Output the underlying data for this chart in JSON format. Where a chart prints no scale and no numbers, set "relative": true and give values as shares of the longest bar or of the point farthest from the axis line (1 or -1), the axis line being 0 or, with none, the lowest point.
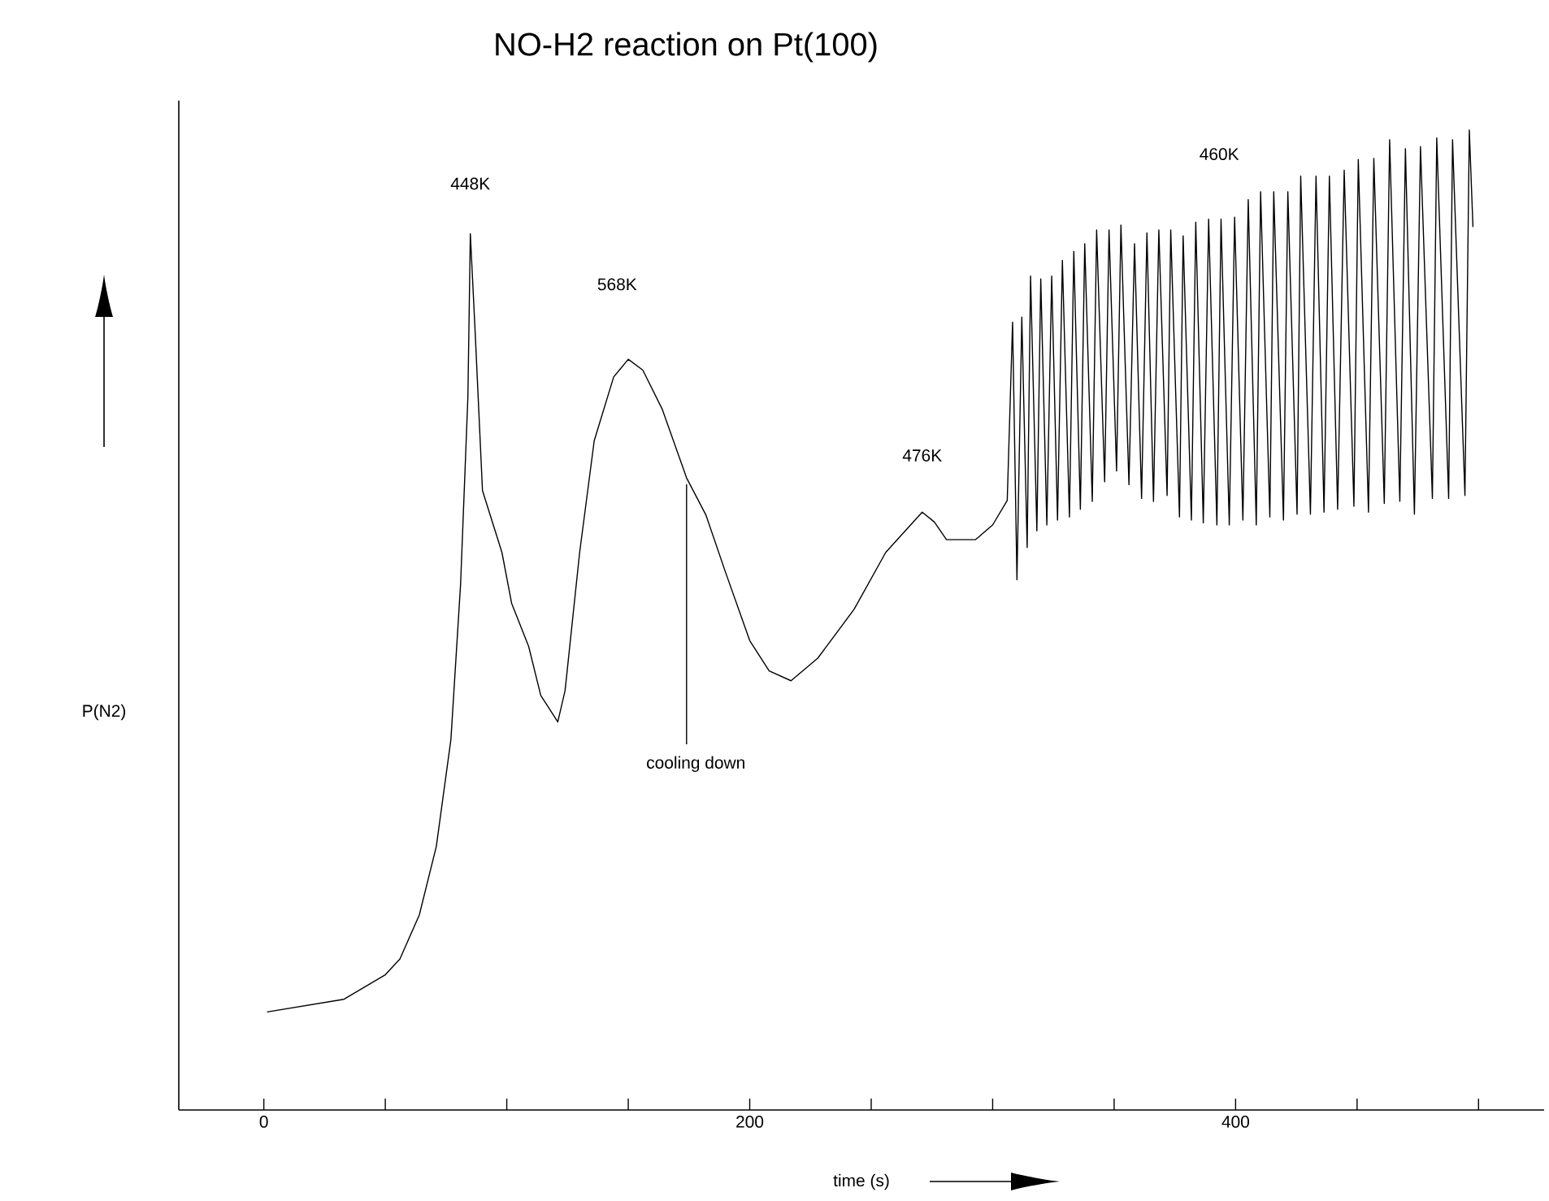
{
  "chart_data": {
    "type": "line",
    "title": "NO-H2 reaction on Pt(100)",
    "xlabel": "time (s)",
    "ylabel": "P(N2)",
    "relative": true,
    "xlim": [
      -35,
      527
    ],
    "xticks": [
      0,
      {
        "value": 50,
        "label": null
      },
      {
        "value": 100,
        "label": null
      },
      {
        "value": 150,
        "label": null
      },
      200,
      {
        "value": 250,
        "label": null
      },
      {
        "value": 300,
        "label": null
      },
      {
        "value": 350,
        "label": null
      },
      400,
      {
        "value": 450,
        "label": null
      },
      {
        "value": 500,
        "label": null
      }
    ],
    "annotations": [
      {
        "text": "448K",
        "x": 85,
        "y": 0.894
      },
      "568K",
      {
        "text": "476K",
        "x": 271,
        "y": 0.61
      },
      "460K",
      {
        "text": "cooling down",
        "x": 174,
        "y": 0.645
      }
    ],
    "series": [
      {
        "color": "#000000",
        "x": [
          1.3,
          33,
          50,
          56,
          64,
          71,
          77,
          81,
          84,
          85,
          87,
          90,
          98,
          102,
          109,
          114,
          121,
          124,
          130,
          136,
          144,
          150,
          156,
          164,
          174,
          182,
          190,
          200,
          208,
          217,
          228,
          243,
          256,
          271,
          276,
          281,
          293,
          300,
          306,
          308.2,
          310.0,
          312.0,
          314.2,
          315.6,
          318.2,
          319.8,
          322.3,
          324.3,
          326.7,
          328.7,
          331.6,
          333.4,
          336.1,
          337.9,
          341.0,
          342.8,
          346.1,
          347.9,
          351.0,
          352.8,
          356.1,
          358.4,
          361.3,
          363.5,
          366.2,
          368.4,
          371.8,
          373.3,
          376.9,
          378.4,
          381.8,
          383.6,
          386.7,
          388.9,
          392.3,
          394.0,
          397.4,
          399.6,
          403.0,
          405.2,
          408.5,
          410.3,
          414.1,
          415.7,
          419.7,
          421.5,
          425.3,
          426.8,
          430.8,
          433.1,
          436.4,
          438.6,
          442.0,
          444.7,
          448.7,
          450.5,
          454.7,
          456.9,
          461.2,
          463.4,
          467.6,
          469.9,
          473.6,
          476.1,
          481.0,
          482.8,
          487.7,
          489.3,
          494.4,
          496.2,
          497.7
        ],
        "values": [
          0.1,
          0.113,
          0.138,
          0.154,
          0.199,
          0.269,
          0.378,
          0.537,
          0.728,
          0.894,
          0.793,
          0.632,
          0.569,
          0.517,
          0.473,
          0.423,
          0.396,
          0.428,
          0.569,
          0.683,
          0.748,
          0.766,
          0.755,
          0.715,
          0.645,
          0.607,
          0.549,
          0.479,
          0.448,
          0.438,
          0.461,
          0.511,
          0.569,
          0.61,
          0.6,
          0.582,
          0.582,
          0.597,
          0.622,
          0.804,
          0.541,
          0.809,
          0.574,
          0.851,
          0.591,
          0.848,
          0.597,
          0.851,
          0.602,
          0.867,
          0.605,
          0.876,
          0.613,
          0.884,
          0.621,
          0.898,
          0.641,
          0.898,
          0.652,
          0.903,
          0.638,
          0.884,
          0.624,
          0.895,
          0.621,
          0.898,
          0.627,
          0.898,
          0.605,
          0.892,
          0.602,
          0.906,
          0.599,
          0.909,
          0.597,
          0.909,
          0.597,
          0.911,
          0.602,
          0.929,
          0.597,
          0.937,
          0.605,
          0.937,
          0.602,
          0.937,
          0.608,
          0.953,
          0.608,
          0.953,
          0.61,
          0.953,
          0.613,
          0.959,
          0.616,
          0.97,
          0.61,
          0.971,
          0.619,
          0.99,
          0.621,
          0.981,
          0.608,
          0.983,
          0.624,
          0.992,
          0.624,
          0.99,
          0.627,
          1.0,
          0.901
        ]
      }
    ]
  }
}
